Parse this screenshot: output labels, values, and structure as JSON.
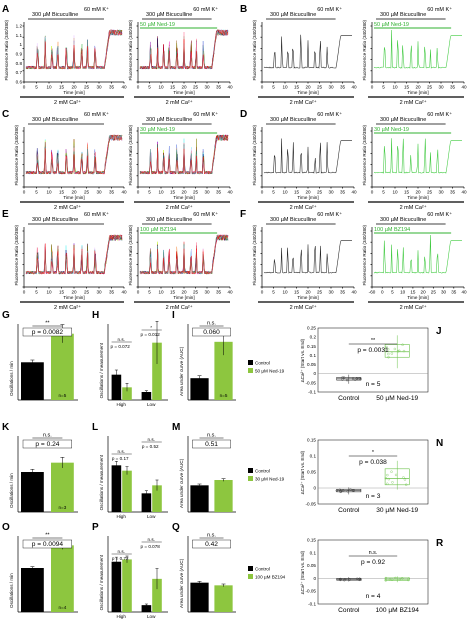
{
  "traces": {
    "A": {
      "label": "A",
      "left": {
        "drug": "300 µM Bicuculline",
        "k": "60 mM K⁺",
        "ca": "2 mM Ca²⁺",
        "xlabel": "Time [min]",
        "ylabel": "Fluorescence Ratio (340/380)",
        "ticks": [
          "0",
          "5",
          "10",
          "15",
          "20",
          "25",
          "30",
          "35",
          "40"
        ],
        "y_ticks": [
          "1.2",
          "1.1",
          "1",
          "0.9",
          "0.8",
          "0.7",
          "0.6"
        ],
        "style": "multi"
      },
      "right": {
        "drug": "300 µM Bicuculline",
        "treat": "50 µM Ned-19",
        "k": "60 mM K⁺",
        "ca": "2 mM Ca²⁺",
        "xlabel": "Time [min]",
        "ylabel": "Fluorescence Ratio (340/380)",
        "ticks": [
          "0",
          "5",
          "10",
          "15",
          "20",
          "25",
          "30",
          "35",
          "40"
        ],
        "style": "multi"
      }
    },
    "B": {
      "label": "B",
      "left": {
        "drug": "300 µM Bicuculline",
        "k": "60 mM K⁺",
        "ca": "2 mM Ca²⁺",
        "xlabel": "Time [min]",
        "ylabel": "Fluorescence Ratio (340/380)",
        "ticks": [
          "0",
          "5",
          "10",
          "15",
          "20",
          "25",
          "30",
          "35",
          "40"
        ],
        "style": "black"
      },
      "right": {
        "drug": "300 µM Bicuculline",
        "treat": "50 µM Ned-19",
        "k": "60 mM K⁺",
        "ca": "2 mM Ca²⁺",
        "xlabel": "Time [min]",
        "ylabel": "Fluorescence Ratio (340/380)",
        "ticks": [
          "0",
          "5",
          "10",
          "15",
          "20",
          "25",
          "30",
          "35",
          "40"
        ],
        "style": "green"
      }
    },
    "C": {
      "label": "C",
      "left": {
        "drug": "300 µM Bicuculline",
        "k": "60 mM K⁺",
        "ca": "2 mM Ca²⁺",
        "xlabel": "Time [min]",
        "ylabel": "Fluorescence Ratio (340/380)",
        "ticks": [
          "0",
          "5",
          "10",
          "15",
          "20",
          "25",
          "30",
          "35",
          "40"
        ],
        "style": "multi"
      },
      "right": {
        "drug": "300 µM Bicuculline",
        "treat": "30 µM Ned-19",
        "k": "60 mM K⁺",
        "ca": "2 mM Ca²⁺",
        "xlabel": "Time [min]",
        "ylabel": "Fluorescence Ratio (340/380)",
        "ticks": [
          "0",
          "5",
          "10",
          "15",
          "20",
          "25",
          "30",
          "35",
          "40"
        ],
        "style": "multi"
      }
    },
    "D": {
      "label": "D",
      "left": {
        "drug": "300 µM Bicuculline",
        "k": "60 mM K⁺",
        "ca": "2 mM Ca²⁺",
        "xlabel": "Time [min]",
        "ylabel": "Fluorescence Ratio (340/380)",
        "ticks": [
          "0",
          "5",
          "10",
          "15",
          "20",
          "25",
          "30",
          "35",
          "40"
        ],
        "style": "black"
      },
      "right": {
        "drug": "300 µM Bicuculline",
        "treat": "30 µM Ned-19",
        "k": "60 mM K⁺",
        "ca": "2 mM Ca²⁺",
        "xlabel": "Time [min]",
        "ylabel": "Fluorescence Ratio (340/380)",
        "ticks": [
          "0",
          "5",
          "10",
          "15",
          "20",
          "25",
          "30",
          "35",
          "40"
        ],
        "style": "green"
      }
    },
    "E": {
      "label": "E",
      "left": {
        "drug": "300 µM Bicuculline",
        "k": "60 mM K⁺",
        "ca": "2 mM Ca²⁺",
        "xlabel": "Time [min]",
        "ylabel": "Fluorescence Ratio (340/380)",
        "ticks": [
          "0",
          "5",
          "10",
          "15",
          "20",
          "25",
          "30",
          "35",
          "40"
        ],
        "style": "multi"
      },
      "right": {
        "drug": "300 µM Bicuculline",
        "treat": "100 µM BZ194",
        "k": "60 mM K⁺",
        "ca": "2 mM Ca²⁺",
        "xlabel": "Time [min]",
        "ylabel": "Fluorescence Ratio (340/380)",
        "ticks": [
          "0",
          "5",
          "10",
          "15",
          "20",
          "25",
          "30",
          "35",
          "40"
        ],
        "style": "multi"
      }
    },
    "F": {
      "label": "F",
      "left": {
        "drug": "300 µM Bicuculline",
        "k": "60 mM K⁺",
        "ca": "2 mM Ca²⁺",
        "xlabel": "Time [min]",
        "ylabel": "Fluorescence Ratio (340/380)",
        "ticks": [
          "0",
          "5",
          "10",
          "15",
          "20",
          "25",
          "30",
          "35",
          "40"
        ],
        "style": "black"
      },
      "right": {
        "drug": "300 µM Bicuculline",
        "treat": "100 µM BZ194",
        "k": "60 mM K⁺",
        "ca": "2 mM Ca²⁺",
        "xlabel": "Time [min]",
        "ylabel": "Fluorescence Ratio (340/380)",
        "ticks": [
          "-60",
          "0",
          "5",
          "10",
          "15",
          "20",
          "25",
          "30",
          "35",
          "40"
        ],
        "style": "green"
      }
    }
  },
  "colors": {
    "control": "#000000",
    "treatment": "#8dc63f",
    "treatment_line": "#3ec93e",
    "box": "#8dc63f"
  },
  "chart_data": [
    {
      "type": "bar",
      "panel": "G",
      "ylabel": "Oscillations / min",
      "categories": [
        "Control",
        "50 µM Ned-19"
      ],
      "values": [
        0.33,
        0.58
      ],
      "errors": [
        0.02,
        0.08
      ],
      "ylim": [
        0,
        0.7
      ],
      "n_labels": [
        "n=5",
        "n=5"
      ],
      "significance": "**",
      "p_text": "p = 0.0082"
    },
    {
      "type": "bar",
      "panel": "H",
      "ylabel": "Oscillations / measurement",
      "categories": [
        "High",
        "Low"
      ],
      "series": [
        {
          "name": "Control",
          "values": [
            3.8,
            1.2
          ],
          "errors": [
            0.7,
            0.2
          ]
        },
        {
          "name": "50 µM Ned-19",
          "values": [
            1.9,
            8.6
          ],
          "errors": [
            0.6,
            3.2
          ]
        }
      ],
      "ylim": [
        0,
        12
      ],
      "n_labels": [
        "n=5",
        "n=5"
      ],
      "annotations": [
        {
          "sig": "n.s.",
          "p": "p = 0.072"
        },
        {
          "sig": "*",
          "p": "p = 0.012"
        }
      ]
    },
    {
      "type": "bar",
      "panel": "I",
      "ylabel": "Area under curve (AUC)",
      "categories": [
        "Control",
        "50 µM Ned-19"
      ],
      "values": [
        0.9,
        2.4
      ],
      "errors": [
        0.1,
        0.55
      ],
      "ylim": [
        0,
        3.3
      ],
      "n_labels": [
        "n=5",
        "n=5"
      ],
      "significance": "n.s.",
      "p_text": "0.060"
    },
    {
      "type": "box",
      "panel": "J",
      "ylabel": "ΔCa²⁺ (Start vs. End)",
      "categories": [
        "Control",
        "50 µM Ned-19"
      ],
      "boxes": [
        {
          "min": -0.055,
          "q1": -0.035,
          "median": -0.028,
          "q3": -0.02,
          "max": -0.005
        },
        {
          "min": 0.03,
          "q1": 0.09,
          "median": 0.12,
          "q3": 0.16,
          "max": 0.21
        }
      ],
      "ylim": [
        -0.1,
        0.25
      ],
      "y_ticks": [
        "0.25",
        "0.2",
        "0.15",
        "0.1",
        "0.05",
        "0",
        "-0.05",
        "-0.1"
      ],
      "significance": "**",
      "p_text": "p = 0.0031",
      "n_text": "n = 5"
    },
    {
      "type": "bar",
      "panel": "K",
      "ylabel": "Oscillations / min",
      "categories": [
        "Control",
        "30 µM Ned-19"
      ],
      "values": [
        0.3,
        0.37
      ],
      "errors": [
        0.02,
        0.04
      ],
      "ylim": [
        0,
        0.6
      ],
      "n_labels": [
        "n=3",
        "n=3"
      ],
      "significance": "n.s.",
      "p_text": "p = 0.24"
    },
    {
      "type": "bar",
      "panel": "L",
      "ylabel": "Oscillations / measurement",
      "categories": [
        "High",
        "Low"
      ],
      "series": [
        {
          "name": "Control",
          "values": [
            3.5,
            1.4
          ],
          "errors": [
            0.3,
            0.2
          ]
        },
        {
          "name": "30 µM Ned-19",
          "values": [
            3.1,
            2.0
          ],
          "errors": [
            0.3,
            0.4
          ]
        }
      ],
      "ylim": [
        0,
        6
      ],
      "n_labels": [
        "n=3",
        "n=3"
      ],
      "annotations": [
        {
          "sig": "n.s.",
          "p": "p = 0.17"
        },
        {
          "sig": "n.s.",
          "p": "p = 0.52"
        }
      ]
    },
    {
      "type": "bar",
      "panel": "M",
      "ylabel": "Area under curve (AUC)",
      "categories": [
        "Control",
        "30 µM Ned-19"
      ],
      "values": [
        1.0,
        1.2
      ],
      "errors": [
        0.05,
        0.05
      ],
      "ylim": [
        0,
        3.0
      ],
      "n_labels": [],
      "significance": "n.s.",
      "p_text": "0.51"
    },
    {
      "type": "box",
      "panel": "N",
      "ylabel": "ΔCa²⁺ (Start vs. End)",
      "categories": [
        "Control",
        "30 µM Ned-19"
      ],
      "boxes": [
        {
          "min": -0.02,
          "q1": -0.012,
          "median": -0.008,
          "q3": -0.004,
          "max": 0.002
        },
        {
          "min": -0.005,
          "q1": 0.01,
          "median": 0.03,
          "q3": 0.06,
          "max": 0.085
        }
      ],
      "ylim": [
        -0.05,
        0.15
      ],
      "y_ticks": [
        "0.15",
        "0.1",
        "0.05",
        "0",
        "-0.05"
      ],
      "significance": "*",
      "p_text": "p = 0.038",
      "n_text": "n = 3"
    },
    {
      "type": "bar",
      "panel": "O",
      "ylabel": "Oscillations / min",
      "categories": [
        "Control",
        "100 µM BZ194"
      ],
      "values": [
        0.33,
        0.5
      ],
      "errors": [
        0.01,
        0.03
      ],
      "ylim": [
        0,
        0.6
      ],
      "n_labels": [
        "n=4",
        "n=4"
      ],
      "significance": "**",
      "p_text": "p = 0.0094"
    },
    {
      "type": "bar",
      "panel": "P",
      "ylabel": "Oscillations / measurement",
      "categories": [
        "High",
        "Low"
      ],
      "series": [
        {
          "name": "Control",
          "values": [
            4.4,
            0.6
          ],
          "errors": [
            0.4,
            0.1
          ]
        },
        {
          "name": "100 µM BZ194",
          "values": [
            4.6,
            2.9
          ],
          "errors": [
            0.3,
            0.9
          ]
        }
      ],
      "ylim": [
        0,
        7
      ],
      "n_labels": [
        "n=4",
        "n=4"
      ],
      "annotations": [
        {
          "sig": "n.s.",
          "p": "p = 0.72"
        },
        {
          "sig": "n.s.",
          "p": "p = 0.078"
        }
      ]
    },
    {
      "type": "bar",
      "panel": "Q",
      "ylabel": "Area under curve (AUC)",
      "categories": [
        "Control",
        "100 µM BZ194"
      ],
      "values": [
        1.1,
        1.0
      ],
      "errors": [
        0.05,
        0.05
      ],
      "ylim": [
        0,
        3.0
      ],
      "n_labels": [],
      "significance": "n.s.",
      "p_text": "0.42"
    },
    {
      "type": "box",
      "panel": "R",
      "ylabel": "ΔCa²⁺ (Start vs. End)",
      "categories": [
        "Control",
        "100 µM BZ194"
      ],
      "boxes": [
        {
          "min": -0.012,
          "q1": -0.007,
          "median": -0.003,
          "q3": 0.0,
          "max": 0.005
        },
        {
          "min": -0.015,
          "q1": -0.008,
          "median": -0.003,
          "q3": 0.002,
          "max": 0.008
        }
      ],
      "ylim": [
        -0.1,
        0.15
      ],
      "y_ticks": [
        "0.15",
        "0.1",
        "0.05",
        "0",
        "-0.05",
        "-0.1"
      ],
      "significance": "n.s.",
      "p_text": "p = 0.92",
      "n_text": "n = 4"
    }
  ],
  "legends": {
    "row1": {
      "control": "Control",
      "treatment": "50 µM Ned-19"
    },
    "row2": {
      "control": "Control",
      "treatment": "30 µM Ned-19"
    },
    "row3": {
      "control": "Control",
      "treatment": "100 µM BZ194"
    }
  }
}
